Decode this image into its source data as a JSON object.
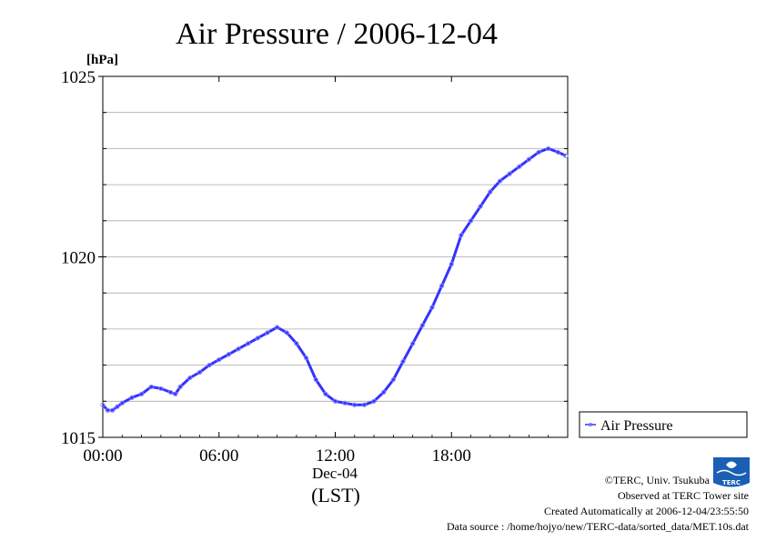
{
  "chart_data": {
    "type": "line",
    "title": "Air Pressure / 2006-12-04",
    "ylabel_unit": "[hPa]",
    "xlabel": "(LST)",
    "date_label": "Dec-04",
    "ylim": [
      1015,
      1025
    ],
    "y_ticks": [
      1015,
      1020,
      1025
    ],
    "y_tick_labels": [
      "1015",
      "1020",
      "1025"
    ],
    "y_grid_step": 1,
    "xlim_hours": [
      0,
      24
    ],
    "x_ticks_hours": [
      0,
      6,
      12,
      18
    ],
    "x_tick_labels": [
      "00:00",
      "06:00",
      "12:00",
      "18:00"
    ],
    "grid": "horizontal",
    "legend_position": "right",
    "series": [
      {
        "name": "Air Pressure",
        "color": "#3333ff",
        "x_hours": [
          0,
          0.25,
          0.5,
          0.75,
          1.0,
          1.5,
          2.0,
          2.5,
          3.0,
          3.5,
          3.75,
          4.0,
          4.5,
          5.0,
          5.5,
          6.0,
          6.5,
          7.0,
          7.5,
          8.0,
          8.5,
          9.0,
          9.5,
          10.0,
          10.5,
          11.0,
          11.5,
          12.0,
          12.5,
          13.0,
          13.5,
          14.0,
          14.5,
          15.0,
          15.5,
          16.0,
          16.5,
          17.0,
          17.5,
          18.0,
          18.5,
          19.0,
          19.5,
          20.0,
          20.5,
          21.0,
          21.5,
          22.0,
          22.5,
          23.0,
          23.5,
          23.9
        ],
        "values": [
          1015.9,
          1015.75,
          1015.75,
          1015.85,
          1015.95,
          1016.1,
          1016.2,
          1016.4,
          1016.35,
          1016.25,
          1016.2,
          1016.4,
          1016.65,
          1016.8,
          1017.0,
          1017.15,
          1017.3,
          1017.45,
          1017.6,
          1017.75,
          1017.9,
          1018.05,
          1017.9,
          1017.6,
          1017.2,
          1016.6,
          1016.2,
          1016.0,
          1015.95,
          1015.9,
          1015.9,
          1016.0,
          1016.25,
          1016.6,
          1017.1,
          1017.6,
          1018.1,
          1018.6,
          1019.2,
          1019.8,
          1020.6,
          1021.0,
          1021.4,
          1021.8,
          1022.1,
          1022.3,
          1022.5,
          1022.7,
          1022.9,
          1023.0,
          1022.9,
          1022.8
        ]
      }
    ]
  },
  "legend": {
    "label": "Air Pressure"
  },
  "logo": {
    "text": "TERC"
  },
  "credits": {
    "line1": "©TERC, Univ. Tsukuba",
    "line2": "Observed at TERC Tower site",
    "line3": "Created Automatically at 2006-12-04/23:55:50",
    "line4": "Data source : /home/hojyo/new/TERC-data/sorted_data/MET.10s.dat"
  }
}
